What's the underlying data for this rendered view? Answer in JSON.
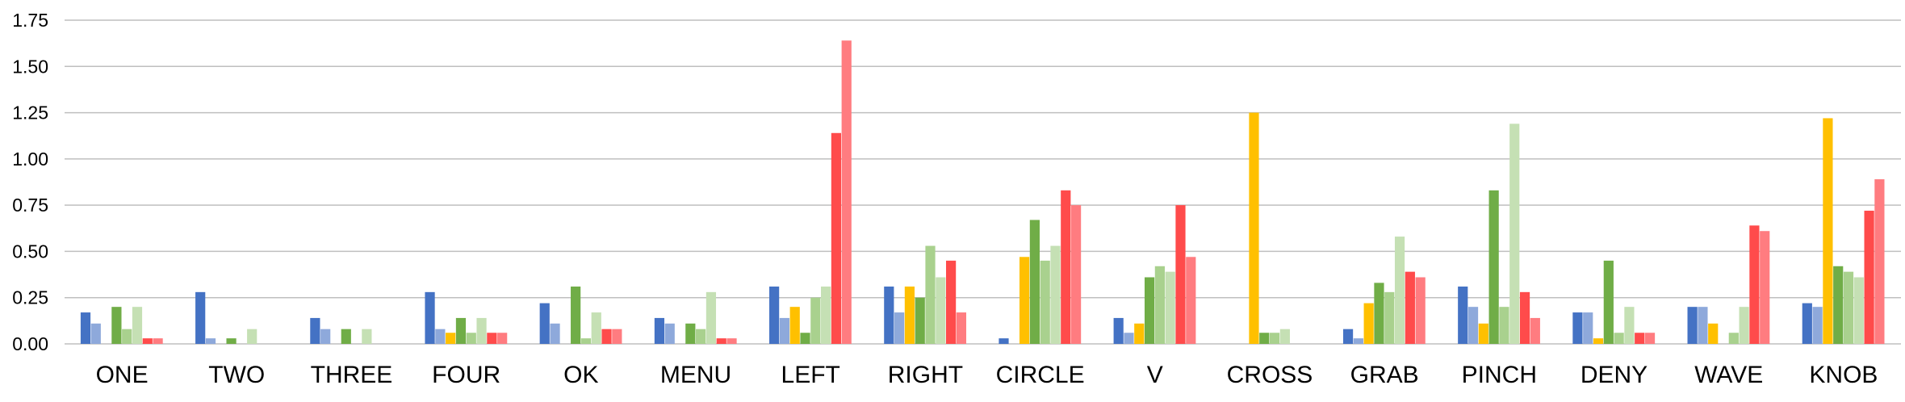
{
  "chart_data": {
    "type": "bar",
    "categories": [
      "ONE",
      "TWO",
      "THREE",
      "FOUR",
      "OK",
      "MENU",
      "LEFT",
      "RIGHT",
      "CIRCLE",
      "V",
      "CROSS",
      "GRAB",
      "PINCH",
      "DENY",
      "WAVE",
      "KNOB"
    ],
    "ylim": [
      0,
      1.75
    ],
    "yticks": [
      "0.00",
      "0.25",
      "0.50",
      "0.75",
      "1.00",
      "1.25",
      "1.50",
      "1.75"
    ],
    "grid": true,
    "series": [
      {
        "color": "#4472C4",
        "values": [
          0.17,
          0.28,
          0.14,
          0.28,
          0.22,
          0.14,
          0.31,
          0.31,
          0.03,
          0.14,
          0.0,
          0.08,
          0.31,
          0.17,
          0.2,
          0.22
        ]
      },
      {
        "color": "#8EA9DB",
        "values": [
          0.11,
          0.03,
          0.08,
          0.08,
          0.11,
          0.11,
          0.14,
          0.17,
          0.0,
          0.06,
          0.0,
          0.03,
          0.2,
          0.17,
          0.2,
          0.2
        ]
      },
      {
        "color": "#FFC000",
        "values": [
          0.0,
          0.0,
          0.0,
          0.06,
          0.0,
          0.0,
          0.2,
          0.31,
          0.47,
          0.11,
          1.25,
          0.22,
          0.11,
          0.03,
          0.11,
          1.22
        ]
      },
      {
        "color": "#70AD47",
        "values": [
          0.2,
          0.03,
          0.08,
          0.14,
          0.31,
          0.11,
          0.06,
          0.25,
          0.67,
          0.36,
          0.06,
          0.33,
          0.83,
          0.45,
          0.0,
          0.42
        ]
      },
      {
        "color": "#A9D18E",
        "values": [
          0.08,
          0.0,
          0.0,
          0.06,
          0.03,
          0.08,
          0.25,
          0.53,
          0.45,
          0.42,
          0.06,
          0.28,
          0.2,
          0.06,
          0.06,
          0.39
        ]
      },
      {
        "color": "#C5E0B4",
        "values": [
          0.2,
          0.08,
          0.08,
          0.14,
          0.17,
          0.28,
          0.31,
          0.36,
          0.53,
          0.39,
          0.08,
          0.58,
          1.19,
          0.2,
          0.2,
          0.36
        ]
      },
      {
        "color": "#FF4B4B",
        "values": [
          0.03,
          0.0,
          0.0,
          0.06,
          0.08,
          0.03,
          1.14,
          0.45,
          0.83,
          0.75,
          0.0,
          0.39,
          0.28,
          0.06,
          0.64,
          0.72
        ]
      },
      {
        "color": "#FF7C80",
        "values": [
          0.03,
          0.0,
          0.0,
          0.06,
          0.08,
          0.03,
          1.64,
          0.17,
          0.75,
          0.47,
          0.0,
          0.36,
          0.14,
          0.06,
          0.61,
          0.89
        ]
      }
    ]
  }
}
